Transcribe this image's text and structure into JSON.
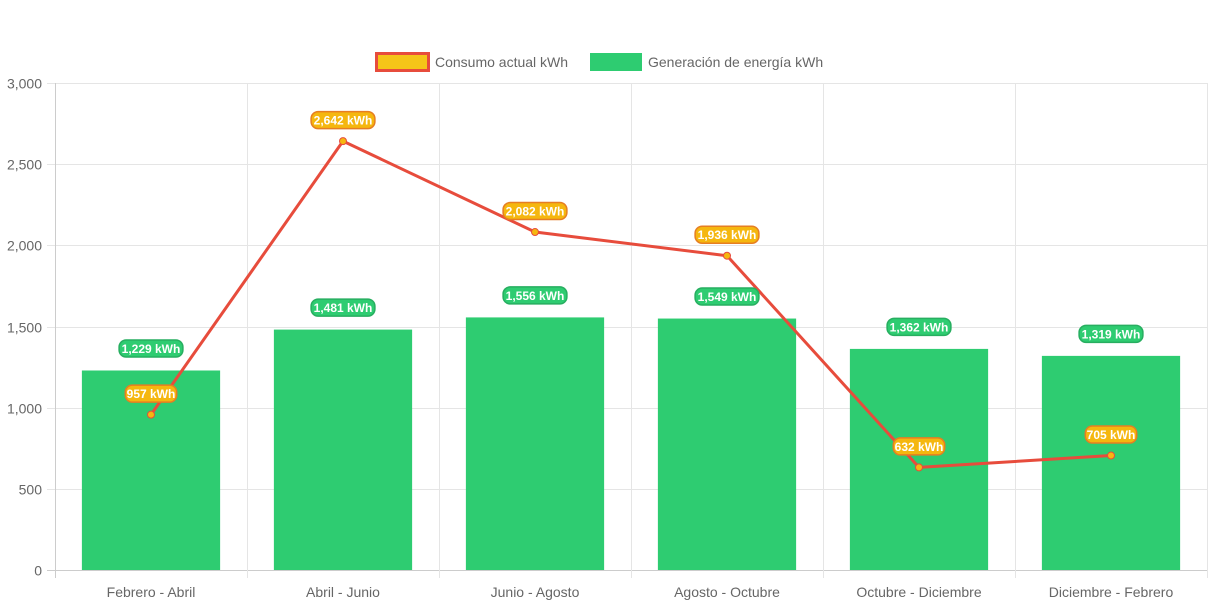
{
  "chart_data": {
    "type": "bar",
    "categories": [
      "Febrero - Abril",
      "Abril - Junio",
      "Junio - Agosto",
      "Agosto - Octubre",
      "Octubre - Diciembre",
      "Diciembre - Febrero"
    ],
    "series": [
      {
        "name": "Consumo actual kWh",
        "type": "line",
        "values": [
          957,
          2642,
          2082,
          1936,
          632,
          705
        ],
        "labels": [
          "957 kWh",
          "2,642 kWh",
          "2,082 kWh",
          "1,936 kWh",
          "632 kWh",
          "705 kWh"
        ],
        "color": "#e74c3c",
        "point_color": "#f5b70f"
      },
      {
        "name": "Generación de energía kWh",
        "type": "bar",
        "values": [
          1229,
          1481,
          1556,
          1549,
          1362,
          1319
        ],
        "labels": [
          "1,229 kWh",
          "1,481 kWh",
          "1,556 kWh",
          "1,549 kWh",
          "1,362 kWh",
          "1,319 kWh"
        ],
        "color": "#2ecc71"
      }
    ],
    "ylim": [
      0,
      3000
    ],
    "yticks": [
      0,
      500,
      1000,
      1500,
      2000,
      2500,
      3000
    ],
    "ytick_labels": [
      "0",
      "500",
      "1,000",
      "1,500",
      "2,000",
      "2,500",
      "3,000"
    ],
    "grid": true,
    "legend_position": "top-center"
  }
}
